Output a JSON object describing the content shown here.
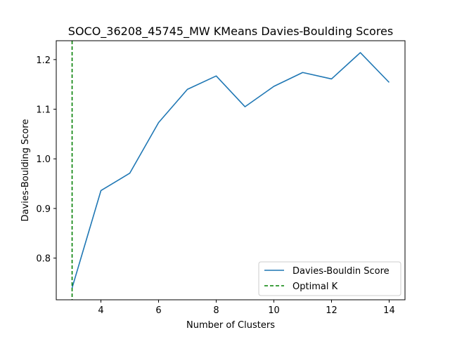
{
  "chart_data": {
    "type": "line",
    "title": "SOCO_36208_45745_MW KMeans Davies-Boulding Scores",
    "xlabel": "Number of Clusters",
    "ylabel": "Davies-Boulding Score",
    "x": [
      3,
      4,
      5,
      6,
      7,
      8,
      9,
      10,
      11,
      12,
      13,
      14
    ],
    "series": [
      {
        "name": "Davies-Bouldin Score",
        "color": "#1f77b4",
        "values": [
          0.74,
          0.936,
          0.971,
          1.073,
          1.14,
          1.167,
          1.105,
          1.146,
          1.174,
          1.161,
          1.214,
          1.154
        ]
      }
    ],
    "vline": {
      "name": "Optimal K",
      "x": 3,
      "color": "#008000",
      "style": "dashed"
    },
    "xlim": [
      2.45,
      14.55
    ],
    "ylim": [
      0.716,
      1.238
    ],
    "xticks": [
      4,
      6,
      8,
      10,
      12,
      14
    ],
    "yticks": [
      0.8,
      0.9,
      1.0,
      1.1,
      1.2
    ],
    "ytick_labels": [
      "0.8",
      "0.9",
      "1.0",
      "1.1",
      "1.2"
    ],
    "grid": false,
    "legend_position": "lower-right"
  }
}
